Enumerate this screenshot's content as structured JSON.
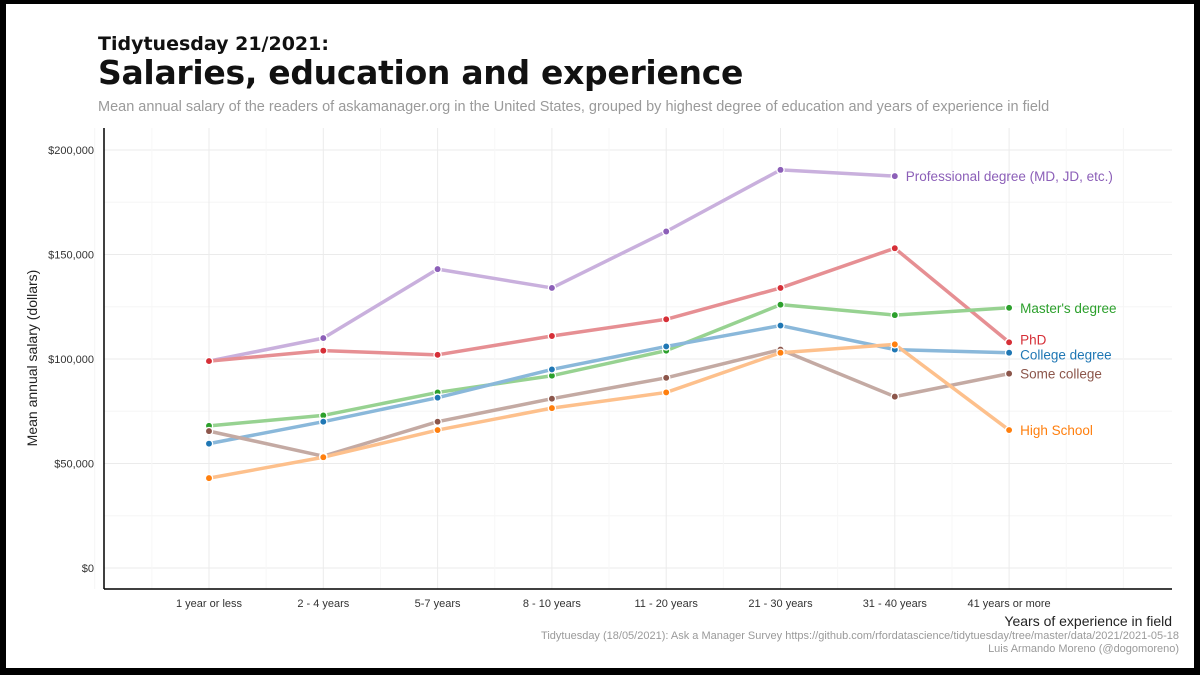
{
  "header": {
    "pre_title": "Tidytuesday 21/2021:",
    "title": "Salaries, education and experience",
    "subtitle": "Mean annual salary of the readers of askamanager.org in the United States, grouped by highest degree of education and years of experience in field"
  },
  "caption": {
    "line1": "Tidytuesday (18/05/2021): Ask a Manager Survey https://github.com/rfordatascience/tidytuesday/tree/master/data/2021/2021-05-18",
    "line2": "Luis Armando Moreno (@dogomoreno)"
  },
  "chart_data": {
    "type": "line",
    "title": "Salaries, education and experience",
    "xlabel": "Years of experience in field",
    "ylabel": "Mean annual salary (dollars)",
    "categories": [
      "1 year or less",
      "2 - 4 years",
      "5-7 years",
      "8 - 10 years",
      "11 - 20 years",
      "21 - 30 years",
      "31 - 40 years",
      "41 years or more"
    ],
    "y_ticks": [
      0,
      50000,
      100000,
      150000,
      200000
    ],
    "y_tick_labels": [
      "$0",
      "$50,000",
      "$100,000",
      "$150,000",
      "$200,000"
    ],
    "ylim": [
      0,
      210000
    ],
    "grid": true,
    "legend": "direct labels at line ends",
    "series": [
      {
        "name": "Professional degree (MD, JD, etc.)",
        "color": "#8c5fb8",
        "line_color": "#c9b0dd",
        "values": [
          99000,
          110000,
          143000,
          134000,
          161000,
          190500,
          187500,
          null
        ]
      },
      {
        "name": "PhD",
        "color": "#d62f37",
        "line_color": "#e68f93",
        "values": [
          99000,
          104000,
          102000,
          111000,
          119000,
          134000,
          153000,
          108000
        ]
      },
      {
        "name": "Master's degree",
        "color": "#2ca02c",
        "line_color": "#97d291",
        "values": [
          68000,
          73000,
          84000,
          92000,
          104000,
          126000,
          121000,
          124500
        ]
      },
      {
        "name": "College degree",
        "color": "#1f77b4",
        "line_color": "#8ab8da",
        "values": [
          59500,
          70000,
          81500,
          95000,
          106000,
          116000,
          104500,
          103000
        ]
      },
      {
        "name": "Some college",
        "color": "#8c564b",
        "line_color": "#c4aaa3",
        "values": [
          65500,
          53500,
          70000,
          81000,
          91000,
          104500,
          82000,
          93000
        ]
      },
      {
        "name": "High School",
        "color": "#ff7f0e",
        "line_color": "#fdc08c",
        "values": [
          43000,
          53000,
          66000,
          76500,
          84000,
          103000,
          107000,
          66000
        ]
      }
    ]
  }
}
